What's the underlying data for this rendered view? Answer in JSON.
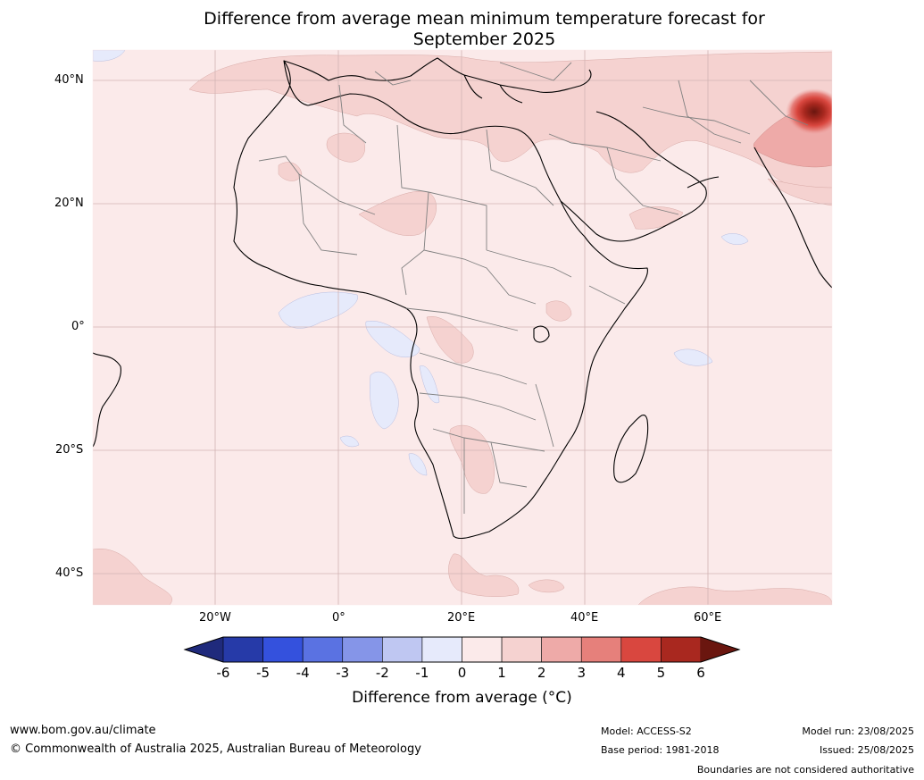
{
  "title_line1": "Difference from average mean minimum temperature forecast for",
  "title_line2": "September 2025",
  "lat_labels": [
    "40°N",
    "20°N",
    "0°",
    "20°S",
    "40°S"
  ],
  "lon_labels": [
    "20°W",
    "0°",
    "20°E",
    "40°E",
    "60°E"
  ],
  "colorbar": {
    "ticks": [
      "-6",
      "-5",
      "-4",
      "-3",
      "-2",
      "-1",
      "0",
      "1",
      "2",
      "3",
      "4",
      "5",
      "6"
    ],
    "colors": {
      "under": "#1f2a7c",
      "bins": [
        "#263aa8",
        "#3451dd",
        "#5a72e2",
        "#8595e8",
        "#bfc7f2",
        "#e6eafb",
        "#fbeaea",
        "#f5d2d0",
        "#eeaaa8",
        "#e6807b",
        "#d9473f",
        "#a9281f"
      ],
      "over": "#6a160f"
    },
    "label": "Difference from average (°C)"
  },
  "footer": {
    "url": "www.bom.gov.au/climate",
    "copyright": "© Commonwealth of Australia 2025, Australian Bureau of Meteorology",
    "model": "Model: ACCESS-S2",
    "base_period": "Base period: 1981-2018",
    "model_run": "Model run: 23/08/2025",
    "issued": "Issued: 25/08/2025",
    "disclaimer": "Boundaries are not considered authoritative"
  }
}
